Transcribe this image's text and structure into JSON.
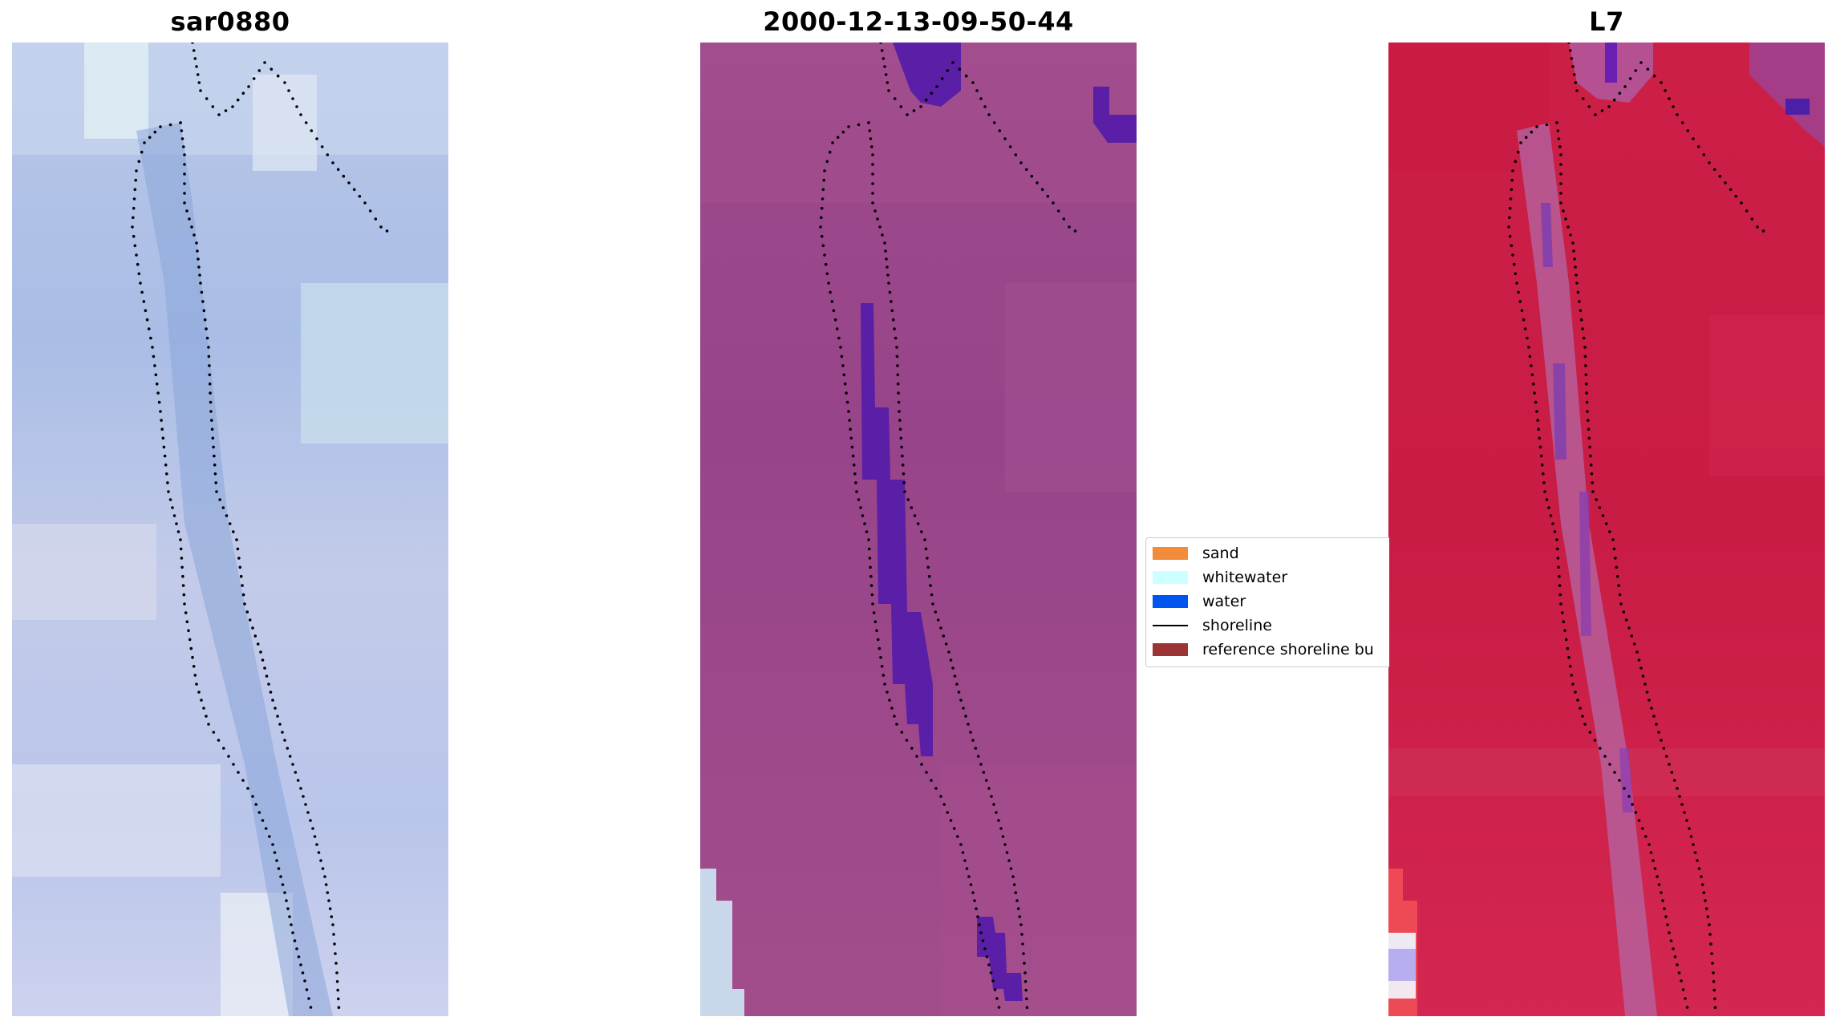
{
  "panels": [
    {
      "title": "sar0880"
    },
    {
      "title": "2000-12-13-09-50-44"
    },
    {
      "title": "L7"
    }
  ],
  "legend": {
    "items": [
      {
        "label": "sand",
        "color": "#f28c3a",
        "kind": "patch"
      },
      {
        "label": "whitewater",
        "color": "#ccffff",
        "kind": "patch"
      },
      {
        "label": "water",
        "color": "#0055ee",
        "kind": "patch"
      },
      {
        "label": "shoreline",
        "color": "#000000",
        "kind": "line"
      },
      {
        "label": "reference shoreline bu",
        "color": "#9b3535",
        "kind": "patch"
      }
    ]
  },
  "colors": {
    "panel1_base": "#b4c3e8",
    "panel2_base": "#9b478b",
    "panel2_water": "#5a1fa6",
    "panel3_base": "#cc1f46",
    "shoreline_dots": "#000000"
  }
}
